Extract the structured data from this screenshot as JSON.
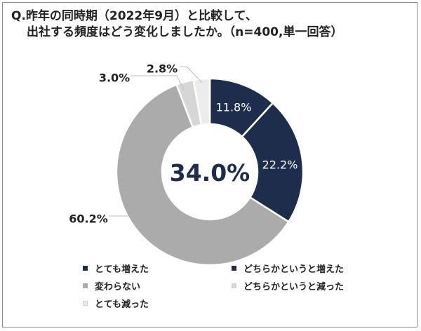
{
  "title": {
    "line1": "Q.昨年の同時期（2022年9月）と比較して、",
    "line2": "出社する頻度はどう変化しましたか。（n=400,単一回答）"
  },
  "chart_data": {
    "type": "pie",
    "variant": "donut",
    "center_label": "34.0%",
    "categories": [
      "とても増えた",
      "どちらかというと増えた",
      "変わらない",
      "どちらかというと減った",
      "とても減った"
    ],
    "values": [
      11.8,
      22.2,
      60.2,
      3.0,
      2.8
    ],
    "value_labels": [
      "11.8%",
      "22.2%",
      "60.2%",
      "3.0%",
      "2.8%"
    ],
    "colors": [
      "#1f2d4d",
      "#1f2d4d",
      "#ababab",
      "#d6d6d6",
      "#ececec"
    ],
    "legend_placement": "bottom",
    "start_angle": "12 o'clock",
    "direction": "clockwise"
  }
}
